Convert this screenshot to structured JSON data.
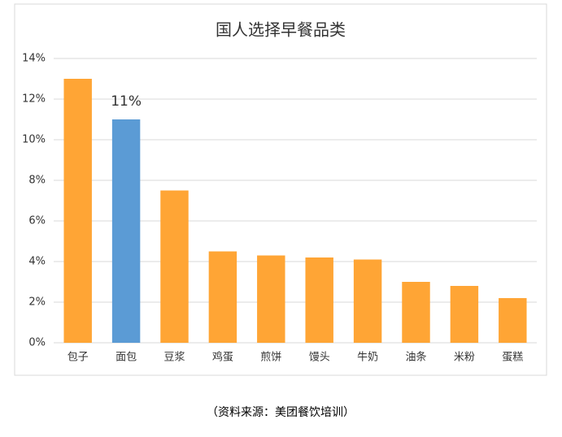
{
  "chart_data": {
    "type": "bar",
    "title": "国人选择早餐品类",
    "categories": [
      "包子",
      "面包",
      "豆浆",
      "鸡蛋",
      "煎饼",
      "馒头",
      "牛奶",
      "油条",
      "米粉",
      "蛋糕"
    ],
    "values": [
      13,
      11,
      7.5,
      4.5,
      4.3,
      4.2,
      4.1,
      3,
      2.8,
      2.2
    ],
    "value_labels": [
      null,
      "11%",
      null,
      null,
      null,
      null,
      null,
      null,
      null,
      null
    ],
    "colors": [
      "#ffa535",
      "#5b9bd5",
      "#ffa535",
      "#ffa535",
      "#ffa535",
      "#ffa535",
      "#ffa535",
      "#ffa535",
      "#ffa535",
      "#ffa535"
    ],
    "ylim": [
      0,
      14
    ],
    "yticks": [
      {
        "value": 0,
        "label": "0%"
      },
      {
        "value": 2,
        "label": "2%"
      },
      {
        "value": 4,
        "label": "4%"
      },
      {
        "value": 6,
        "label": "6%"
      },
      {
        "value": 8,
        "label": "8%"
      },
      {
        "value": 10,
        "label": "10%"
      },
      {
        "value": 12,
        "label": "12%"
      },
      {
        "value": 14,
        "label": "14%"
      }
    ],
    "grid": true,
    "source": "（资料来源：美团餐饮培训）"
  }
}
